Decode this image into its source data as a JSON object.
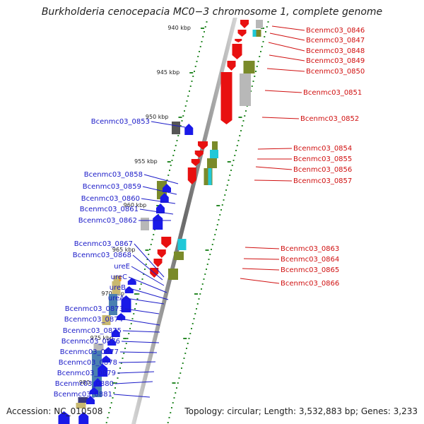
{
  "title": "Burkholderia cenocepacia MC0−3 chromosome 1, complete genome",
  "accession": "Accession: NC_010508",
  "topology": "Topology: circular; Length: 3,532,883 bp; Genes: 3,233",
  "colors": {
    "forward_genes": "#1a1ae8",
    "reverse_genes": "#e81010",
    "backbone": "#8a8a8a",
    "tick_dots": "#2a8a2a",
    "label_forward": "#1a1ac8",
    "label_reverse": "#d01010",
    "cog_olive": "#7a8a2a",
    "cog_gray": "#b8b8b8",
    "cog_cyan": "#20c8d8",
    "cog_steel": "#4a80b0",
    "cog_tan": "#c8b870",
    "cog_orange": "#f0a020"
  },
  "ticks": [
    {
      "label": "940 kbp"
    },
    {
      "label": "945 kbp"
    },
    {
      "label": "950 kbp"
    },
    {
      "label": "955 kbp"
    },
    {
      "label": "960 kbp"
    },
    {
      "label": "965 kbp"
    },
    {
      "label": "970 kbp"
    },
    {
      "label": "975 kbp"
    },
    {
      "label": "980 kbp"
    }
  ],
  "left_labels": [
    {
      "text": "Bcenmc03_0853"
    },
    {
      "text": "Bcenmc03_0858"
    },
    {
      "text": "Bcenmc03_0859"
    },
    {
      "text": "Bcenmc03_0860"
    },
    {
      "text": "Bcenmc03_0861"
    },
    {
      "text": "Bcenmc03_0862"
    },
    {
      "text": "Bcenmc03_0867"
    },
    {
      "text": "Bcenmc03_0868"
    },
    {
      "text": "ureE"
    },
    {
      "text": "ureC"
    },
    {
      "text": "ureB"
    },
    {
      "text": "ureA"
    },
    {
      "text": "Bcenmc03_0873"
    },
    {
      "text": "Bcenmc03_0874"
    },
    {
      "text": "Bcenmc03_0875"
    },
    {
      "text": "Bcenmc03_0876"
    },
    {
      "text": "Bcenmc03_0877"
    },
    {
      "text": "Bcenmc03_0878"
    },
    {
      "text": "Bcenmc03_0879"
    },
    {
      "text": "Bcenmc03_0880"
    },
    {
      "text": "Bcenmc03_0881"
    }
  ],
  "right_labels": [
    {
      "text": "Bcenmc03_0846"
    },
    {
      "text": "Bcenmc03_0847"
    },
    {
      "text": "Bcenmc03_0848"
    },
    {
      "text": "Bcenmc03_0849"
    },
    {
      "text": "Bcenmc03_0850"
    },
    {
      "text": "Bcenmc03_0851"
    },
    {
      "text": "Bcenmc03_0852"
    },
    {
      "text": "Bcenmc03_0854"
    },
    {
      "text": "Bcenmc03_0855"
    },
    {
      "text": "Bcenmc03_0856"
    },
    {
      "text": "Bcenmc03_0857"
    },
    {
      "text": "Bcenmc03_0863"
    },
    {
      "text": "Bcenmc03_0864"
    },
    {
      "text": "Bcenmc03_0865"
    },
    {
      "text": "Bcenmc03_0866"
    }
  ]
}
